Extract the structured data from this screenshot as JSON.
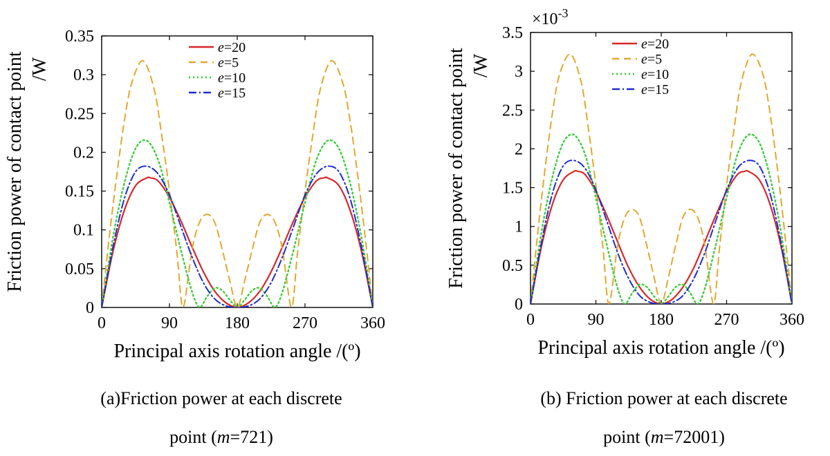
{
  "chart_data": [
    {
      "type": "line",
      "id": "a",
      "xlabel": "Principal axis rotation angle /(º)",
      "ylabel_line1": "Friction power of contact point",
      "ylabel_line2": "/W",
      "xlim": [
        0,
        360
      ],
      "ylim": [
        0,
        0.35
      ],
      "xticks": [
        0,
        90,
        180,
        270,
        360
      ],
      "yticks": [
        0,
        0.05,
        0.1,
        0.15,
        0.2,
        0.25,
        0.3,
        0.35
      ],
      "ytick_labels": [
        "0",
        "0.05",
        "0.1",
        "0.15",
        "0.2",
        "0.25",
        "0.3",
        "0.35"
      ],
      "exponent_label": "",
      "legend_position": "top-center",
      "series": [
        {
          "name": "e=20",
          "var": "e",
          "value": "=20",
          "color": "#d62728",
          "dash": "",
          "width": 2.2,
          "x": [
            0,
            15,
            30,
            45,
            60,
            65,
            75,
            90,
            105,
            120,
            135,
            150,
            165,
            180,
            195,
            210,
            225,
            240,
            255,
            270,
            285,
            295,
            300,
            315,
            330,
            345,
            360
          ],
          "y": [
            0,
            0.072,
            0.125,
            0.157,
            0.167,
            0.167,
            0.163,
            0.142,
            0.112,
            0.078,
            0.046,
            0.021,
            0.006,
            0,
            0.006,
            0.021,
            0.046,
            0.078,
            0.112,
            0.142,
            0.163,
            0.167,
            0.167,
            0.157,
            0.125,
            0.072,
            0
          ]
        },
        {
          "name": "e=5",
          "var": "e",
          "value": "=5",
          "color": "#e2a72c",
          "dash": "10,7",
          "width": 2.0,
          "x": [
            0,
            10,
            20,
            30,
            40,
            55,
            70,
            80,
            90,
            100,
            108,
            120,
            130,
            140,
            150,
            160,
            170,
            180,
            190,
            200,
            210,
            220,
            230,
            240,
            252,
            260,
            270,
            280,
            290,
            305,
            320,
            330,
            340,
            350,
            360
          ],
          "y": [
            0,
            0.09,
            0.17,
            0.24,
            0.29,
            0.318,
            0.28,
            0.22,
            0.15,
            0.07,
            0,
            0.075,
            0.11,
            0.12,
            0.11,
            0.075,
            0.035,
            0,
            0.035,
            0.075,
            0.11,
            0.12,
            0.11,
            0.075,
            0,
            0.07,
            0.15,
            0.22,
            0.28,
            0.318,
            0.29,
            0.24,
            0.17,
            0.09,
            0
          ]
        },
        {
          "name": "e=10",
          "var": "e",
          "value": "=10",
          "color": "#3ccc3c",
          "dash": "2,4",
          "width": 2.4,
          "x": [
            0,
            15,
            30,
            45,
            60,
            75,
            90,
            105,
            120,
            130,
            140,
            150,
            160,
            170,
            180,
            190,
            200,
            210,
            220,
            230,
            240,
            255,
            270,
            285,
            300,
            315,
            330,
            345,
            360
          ],
          "y": [
            0,
            0.09,
            0.16,
            0.205,
            0.215,
            0.19,
            0.135,
            0.075,
            0.02,
            0,
            0.014,
            0.025,
            0.022,
            0.01,
            0,
            0.01,
            0.022,
            0.025,
            0.014,
            0,
            0.02,
            0.075,
            0.135,
            0.19,
            0.215,
            0.205,
            0.16,
            0.09,
            0
          ]
        },
        {
          "name": "e=15",
          "var": "e",
          "value": "=15",
          "color": "#1f2bcc",
          "dash": "11,4,2,4",
          "width": 2.0,
          "x": [
            0,
            15,
            30,
            45,
            60,
            75,
            90,
            105,
            120,
            135,
            150,
            165,
            180,
            195,
            210,
            225,
            240,
            255,
            270,
            285,
            300,
            315,
            330,
            345,
            360
          ],
          "y": [
            0,
            0.078,
            0.14,
            0.175,
            0.182,
            0.172,
            0.145,
            0.105,
            0.065,
            0.032,
            0.011,
            0.002,
            0,
            0.002,
            0.011,
            0.032,
            0.065,
            0.105,
            0.145,
            0.172,
            0.182,
            0.175,
            0.14,
            0.078,
            0
          ]
        }
      ]
    },
    {
      "type": "line",
      "id": "b",
      "xlabel": "Principal axis rotation angle /(º)",
      "ylabel_line1": "Friction power of contact point",
      "ylabel_line2": "/W",
      "xlim": [
        0,
        360
      ],
      "ylim": [
        0,
        3.5
      ],
      "xticks": [
        0,
        90,
        180,
        270,
        360
      ],
      "yticks": [
        0,
        0.5,
        1,
        1.5,
        2,
        2.5,
        3,
        3.5
      ],
      "ytick_labels": [
        "0",
        "0.5",
        "1",
        "1.5",
        "2",
        "2.5",
        "3",
        "3.5"
      ],
      "exponent_label": "×10",
      "exponent_power": "-3",
      "legend_position": "top-center",
      "series": [
        {
          "name": "e=20",
          "var": "e",
          "value": "=20",
          "color": "#d62728",
          "dash": "",
          "width": 2.2,
          "x": [
            0,
            15,
            30,
            45,
            60,
            65,
            75,
            90,
            105,
            120,
            135,
            150,
            165,
            180,
            195,
            210,
            225,
            240,
            255,
            270,
            285,
            295,
            300,
            315,
            330,
            345,
            360
          ],
          "y": [
            0,
            0.74,
            1.28,
            1.6,
            1.71,
            1.71,
            1.67,
            1.45,
            1.14,
            0.8,
            0.47,
            0.22,
            0.06,
            0,
            0.06,
            0.22,
            0.47,
            0.8,
            1.14,
            1.45,
            1.67,
            1.71,
            1.71,
            1.6,
            1.28,
            0.74,
            0
          ]
        },
        {
          "name": "e=5",
          "var": "e",
          "value": "=5",
          "color": "#e2a72c",
          "dash": "10,7",
          "width": 2.0,
          "x": [
            0,
            10,
            20,
            30,
            40,
            55,
            70,
            80,
            90,
            100,
            108,
            120,
            130,
            140,
            150,
            160,
            170,
            180,
            190,
            200,
            210,
            220,
            230,
            240,
            252,
            260,
            270,
            280,
            290,
            305,
            320,
            330,
            340,
            350,
            360
          ],
          "y": [
            0,
            0.92,
            1.74,
            2.45,
            2.96,
            3.22,
            2.85,
            2.24,
            1.53,
            0.7,
            0,
            0.76,
            1.12,
            1.22,
            1.12,
            0.76,
            0.35,
            0,
            0.35,
            0.76,
            1.12,
            1.22,
            1.12,
            0.76,
            0,
            0.7,
            1.53,
            2.24,
            2.85,
            3.22,
            2.96,
            2.45,
            1.74,
            0.92,
            0
          ]
        },
        {
          "name": "e=10",
          "var": "e",
          "value": "=10",
          "color": "#3ccc3c",
          "dash": "2,4",
          "width": 2.4,
          "x": [
            0,
            15,
            30,
            45,
            60,
            75,
            90,
            105,
            120,
            130,
            140,
            150,
            160,
            170,
            180,
            190,
            200,
            210,
            220,
            230,
            240,
            255,
            270,
            285,
            300,
            315,
            330,
            345,
            360
          ],
          "y": [
            0,
            0.92,
            1.63,
            2.08,
            2.18,
            1.93,
            1.37,
            0.76,
            0.2,
            0,
            0.14,
            0.25,
            0.22,
            0.1,
            0,
            0.1,
            0.22,
            0.25,
            0.14,
            0,
            0.2,
            0.76,
            1.37,
            1.93,
            2.18,
            2.08,
            1.63,
            0.92,
            0
          ]
        },
        {
          "name": "e=15",
          "var": "e",
          "value": "=15",
          "color": "#1f2bcc",
          "dash": "11,4,2,4",
          "width": 2.0,
          "x": [
            0,
            15,
            30,
            45,
            60,
            75,
            90,
            105,
            120,
            135,
            150,
            165,
            180,
            195,
            210,
            225,
            240,
            255,
            270,
            285,
            300,
            315,
            330,
            345,
            360
          ],
          "y": [
            0,
            0.79,
            1.42,
            1.78,
            1.85,
            1.75,
            1.47,
            1.07,
            0.66,
            0.33,
            0.11,
            0.02,
            0,
            0.02,
            0.11,
            0.33,
            0.66,
            1.07,
            1.47,
            1.75,
            1.85,
            1.78,
            1.42,
            0.79,
            0
          ]
        }
      ]
    }
  ],
  "captions": [
    {
      "line1": "(a)Friction power at each discrete",
      "line2_pre": "point (",
      "line2_var": "m",
      "line2_post": "=721)"
    },
    {
      "line1": "(b) Friction power at each discrete",
      "line2_pre": "point (",
      "line2_var": "m",
      "line2_post": "=72001)"
    }
  ]
}
